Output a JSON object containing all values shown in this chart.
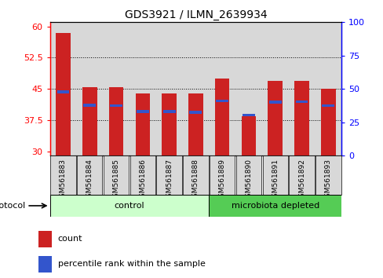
{
  "title": "GDS3921 / ILMN_2639934",
  "samples": [
    "GSM561883",
    "GSM561884",
    "GSM561885",
    "GSM561886",
    "GSM561887",
    "GSM561888",
    "GSM561889",
    "GSM561890",
    "GSM561891",
    "GSM561892",
    "GSM561893"
  ],
  "counts": [
    58.5,
    45.5,
    45.5,
    44.0,
    44.0,
    44.0,
    47.5,
    38.5,
    47.0,
    47.0,
    45.0
  ],
  "percentile_ranks": [
    48,
    38,
    37.5,
    33,
    33,
    32.5,
    41,
    30.5,
    40,
    40.5,
    37.5
  ],
  "ylim_left": [
    29,
    61
  ],
  "ylim_right": [
    0,
    100
  ],
  "yticks_left": [
    30,
    37.5,
    45,
    52.5,
    60
  ],
  "yticks_right": [
    0,
    25,
    50,
    75,
    100
  ],
  "n_control": 6,
  "n_microbiota": 5,
  "bar_color": "#cc2222",
  "percentile_color": "#3355cc",
  "control_bg": "#ccffcc",
  "microbiota_bg": "#55cc55",
  "panel_bg": "#d8d8d8",
  "plot_bg": "#ffffff",
  "count_label": "count",
  "percentile_label": "percentile rank within the sample",
  "protocol_label": "protocol",
  "control_label": "control",
  "microbiota_label": "microbiota depleted",
  "bar_width": 0.55
}
